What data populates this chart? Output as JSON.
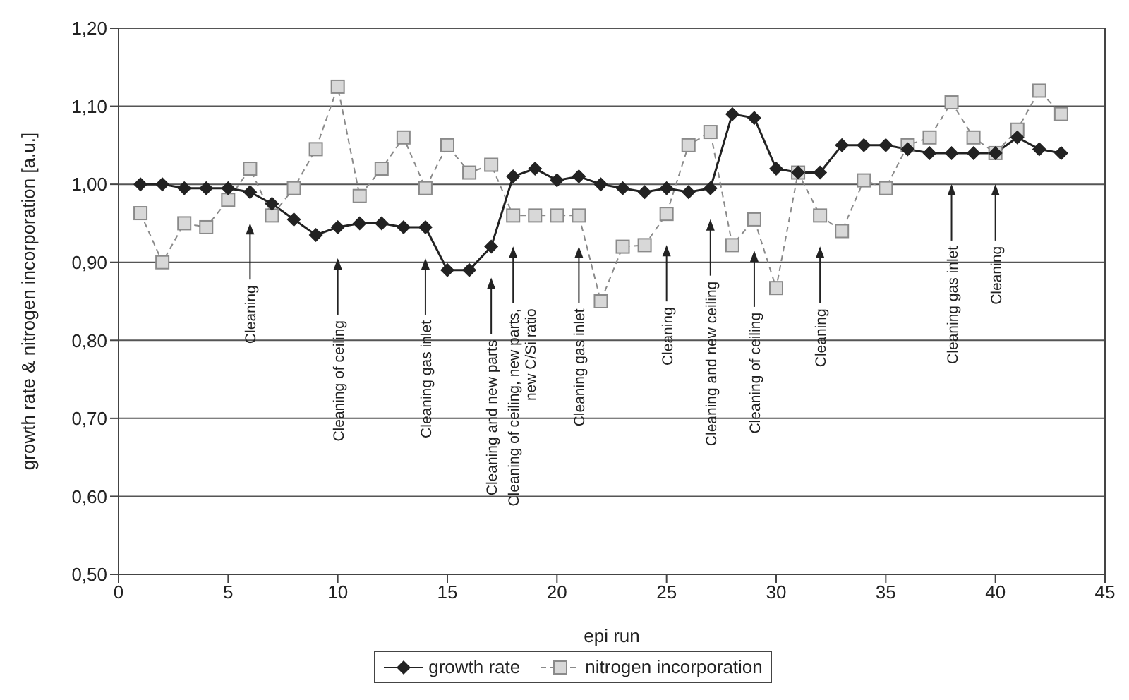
{
  "chart_data": {
    "type": "line",
    "xlabel": "epi run",
    "ylabel": "growth rate & nitrogen incorporation [a.u.]",
    "x": [
      1,
      2,
      3,
      4,
      5,
      6,
      7,
      8,
      9,
      10,
      11,
      12,
      13,
      14,
      15,
      16,
      17,
      18,
      19,
      20,
      21,
      22,
      23,
      24,
      25,
      26,
      27,
      28,
      29,
      30,
      31,
      32,
      33,
      34,
      35,
      36,
      37,
      38,
      39,
      40,
      41,
      42,
      43
    ],
    "series": [
      {
        "name": "growth rate",
        "color": "#222222",
        "marker": "diamond",
        "line_style": "solid",
        "values": [
          1.0,
          1.0,
          0.995,
          0.995,
          0.995,
          0.99,
          0.975,
          0.955,
          0.935,
          0.945,
          0.95,
          0.95,
          0.945,
          0.945,
          0.89,
          0.89,
          0.92,
          1.01,
          1.02,
          1.005,
          1.01,
          1.0,
          0.995,
          0.99,
          0.995,
          0.99,
          0.995,
          1.09,
          1.085,
          1.02,
          1.015,
          1.015,
          1.05,
          1.05,
          1.05,
          1.045,
          1.04,
          1.04,
          1.04,
          1.04,
          1.06,
          1.045,
          1.04
        ]
      },
      {
        "name": "nitrogen incorporation",
        "color": "#8a8a8a",
        "marker": "square",
        "line_style": "dashed",
        "values": [
          0.963,
          0.9,
          0.95,
          0.945,
          0.98,
          1.02,
          0.96,
          0.995,
          1.045,
          1.125,
          0.985,
          1.02,
          1.06,
          0.995,
          1.05,
          1.015,
          1.025,
          0.96,
          0.96,
          0.96,
          0.96,
          0.85,
          0.92,
          0.922,
          0.962,
          1.05,
          1.067,
          0.922,
          0.955,
          0.867,
          1.015,
          0.96,
          0.94,
          1.005,
          0.995,
          1.05,
          1.06,
          1.105,
          1.06,
          1.04,
          1.07,
          1.12,
          1.09
        ]
      }
    ],
    "xlim": [
      0,
      45
    ],
    "xticks": [
      0,
      5,
      10,
      15,
      20,
      25,
      30,
      35,
      40,
      45
    ],
    "ylim": [
      0.5,
      1.2
    ],
    "yticks": [
      {
        "value": 0.5,
        "label": "0,50"
      },
      {
        "value": 0.6,
        "label": "0,60"
      },
      {
        "value": 0.7,
        "label": "0,70"
      },
      {
        "value": 0.8,
        "label": "0,80"
      },
      {
        "value": 0.9,
        "label": "0,90"
      },
      {
        "value": 1.0,
        "label": "1,00"
      },
      {
        "value": 1.1,
        "label": "1,10"
      },
      {
        "value": 1.2,
        "label": "1,20"
      }
    ],
    "grid": "y",
    "legend": "bottom",
    "ref_lines": [
      {
        "axis": "x",
        "value": 6,
        "label": "Cleaning"
      },
      {
        "axis": "x",
        "value": 10,
        "label": "Cleaning of ceiling"
      },
      {
        "axis": "x",
        "value": 14,
        "label": "Cleaning gas inlet"
      },
      {
        "axis": "x",
        "value": 17,
        "label": "Cleaning and new parts"
      },
      {
        "axis": "x",
        "value": 18,
        "label": "Cleaning of ceiling, new parts,\nnew C/Si ratio"
      },
      {
        "axis": "x",
        "value": 21,
        "label": "Cleaning gas inlet"
      },
      {
        "axis": "x",
        "value": 25,
        "label": "Cleaning"
      },
      {
        "axis": "x",
        "value": 27,
        "label": "Cleaning and new ceiling"
      },
      {
        "axis": "x",
        "value": 29,
        "label": "Cleaning of ceiling"
      },
      {
        "axis": "x",
        "value": 32,
        "label": "Cleaning"
      },
      {
        "axis": "x",
        "value": 38,
        "label": "Cleaning gas inlet"
      },
      {
        "axis": "x",
        "value": 40,
        "label": "Cleaning"
      }
    ]
  }
}
